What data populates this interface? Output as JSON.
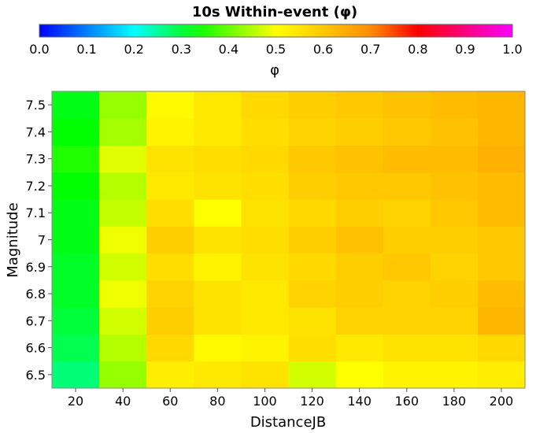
{
  "chart_data": {
    "type": "heatmap",
    "title": "10s Within-event (φ)",
    "xlabel": "DistanceJB",
    "ylabel": "Magnitude",
    "colorbar": {
      "label": "φ",
      "range": [
        0.0,
        1.0
      ],
      "ticks": [
        "0.0",
        "0.1",
        "0.2",
        "0.3",
        "0.4",
        "0.5",
        "0.6",
        "0.7",
        "0.8",
        "0.9",
        "1.0"
      ],
      "placement": "top"
    },
    "x": [
      20,
      40,
      60,
      80,
      100,
      120,
      140,
      160,
      180,
      200
    ],
    "x_tick_labels": [
      "20",
      "40",
      "60",
      "80",
      "100",
      "120",
      "140",
      "160",
      "180",
      "200"
    ],
    "y": [
      6.5,
      6.6,
      6.7,
      6.8,
      6.9,
      7.0,
      7.1,
      7.2,
      7.3,
      7.4,
      7.5
    ],
    "y_tick_labels": [
      "6.5",
      "6.6",
      "6.7",
      "6.8",
      "6.9",
      "7",
      "7.1",
      "7.2",
      "7.3",
      "7.4",
      "7.5"
    ],
    "values": [
      [
        0.27,
        0.43,
        0.53,
        0.54,
        0.55,
        0.47,
        0.5,
        0.52,
        0.52,
        0.53
      ],
      [
        0.29,
        0.45,
        0.57,
        0.51,
        0.52,
        0.56,
        0.54,
        0.55,
        0.55,
        0.57
      ],
      [
        0.3,
        0.47,
        0.59,
        0.55,
        0.54,
        0.55,
        0.58,
        0.58,
        0.58,
        0.63
      ],
      [
        0.31,
        0.49,
        0.58,
        0.55,
        0.54,
        0.58,
        0.59,
        0.58,
        0.59,
        0.62
      ],
      [
        0.31,
        0.47,
        0.56,
        0.52,
        0.55,
        0.57,
        0.59,
        0.6,
        0.58,
        0.6
      ],
      [
        0.32,
        0.49,
        0.59,
        0.55,
        0.56,
        0.59,
        0.61,
        0.59,
        0.59,
        0.6
      ],
      [
        0.32,
        0.46,
        0.56,
        0.5,
        0.55,
        0.57,
        0.59,
        0.58,
        0.6,
        0.62
      ],
      [
        0.33,
        0.45,
        0.54,
        0.55,
        0.56,
        0.59,
        0.6,
        0.6,
        0.61,
        0.62
      ],
      [
        0.35,
        0.48,
        0.55,
        0.56,
        0.57,
        0.6,
        0.61,
        0.62,
        0.62,
        0.64
      ],
      [
        0.33,
        0.44,
        0.52,
        0.54,
        0.56,
        0.58,
        0.59,
        0.6,
        0.61,
        0.63
      ],
      [
        0.32,
        0.43,
        0.51,
        0.54,
        0.57,
        0.59,
        0.6,
        0.61,
        0.62,
        0.63
      ]
    ]
  }
}
